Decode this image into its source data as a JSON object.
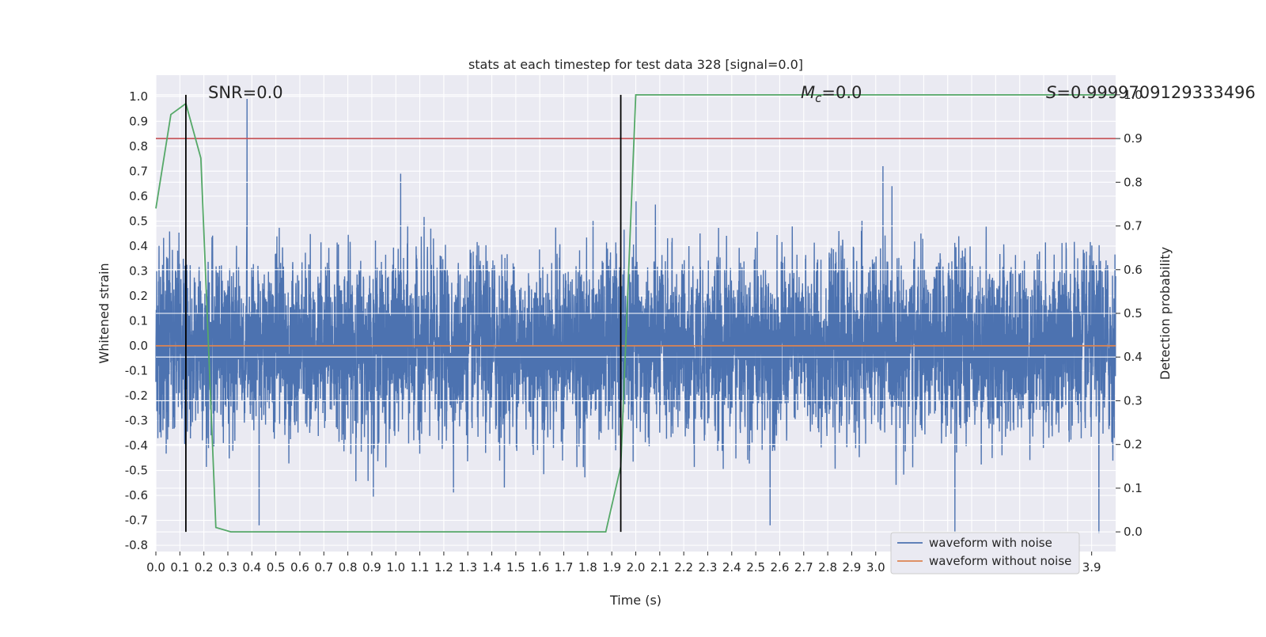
{
  "chart_data": {
    "type": "line",
    "title": "stats at each timestep for test data 328 [signal=0.0]",
    "xlabel": "Time (s)",
    "ylabel_left": "Whitened strain",
    "ylabel_right": "Detection probability",
    "xlim": [
      0.0,
      4.0
    ],
    "ylim_left": [
      -0.825,
      1.085
    ],
    "ylim_right": [
      -0.045,
      1.045
    ],
    "x_ticks": [
      "0.0",
      "0.1",
      "0.2",
      "0.3",
      "0.4",
      "0.5",
      "0.6",
      "0.7",
      "0.8",
      "0.9",
      "1.0",
      "1.1",
      "1.2",
      "1.3",
      "1.4",
      "1.5",
      "1.6",
      "1.7",
      "1.8",
      "1.9",
      "2.0",
      "2.1",
      "2.2",
      "2.3",
      "2.4",
      "2.5",
      "2.6",
      "2.7",
      "2.8",
      "2.9",
      "3.0",
      "3.1",
      "3.2",
      "3.3",
      "3.4",
      "3.5",
      "3.6",
      "3.7",
      "3.8",
      "3.9"
    ],
    "y_ticks_left": [
      "1.0",
      "0.9",
      "0.8",
      "0.7",
      "0.6",
      "0.5",
      "0.4",
      "0.3",
      "0.2",
      "0.1",
      "0.0",
      "-0.1",
      "-0.2",
      "-0.3",
      "-0.4",
      "-0.5",
      "-0.6",
      "-0.7",
      "-0.8"
    ],
    "y_ticks_right": [
      "1.0",
      "0.9",
      "0.8",
      "0.7",
      "0.6",
      "0.5",
      "0.4",
      "0.3",
      "0.2",
      "0.1",
      "0.0"
    ],
    "grid": true,
    "legend_position": "bottom-right",
    "series": [
      {
        "name": "waveform with noise",
        "axis": "left",
        "color": "#4c72b0",
        "kind": "noise",
        "n_samples": 8192,
        "approx_std": 0.21,
        "seed": 328,
        "peaks": [
          {
            "x": 0.38,
            "y": 0.99
          },
          {
            "x": 0.43,
            "y": -0.72
          },
          {
            "x": 1.02,
            "y": 0.69
          },
          {
            "x": 2.56,
            "y": -0.72
          },
          {
            "x": 3.03,
            "y": 0.72
          },
          {
            "x": 3.33,
            "y": -0.75
          },
          {
            "x": 3.93,
            "y": -0.75
          }
        ]
      },
      {
        "name": "waveform without noise",
        "axis": "left",
        "color": "#dd8452",
        "x": [
          0.0,
          4.0
        ],
        "y": [
          0.0,
          0.0
        ]
      },
      {
        "name": "",
        "axis": "right",
        "color": "#55a868",
        "x": [
          0.0,
          0.0625,
          0.125,
          0.1875,
          0.25,
          0.3125,
          1.875,
          1.9375,
          2.0,
          4.0
        ],
        "y": [
          0.74,
          0.955,
          0.98,
          0.855,
          0.01,
          0.0,
          0.0,
          0.15,
          1.0,
          1.0
        ]
      }
    ],
    "threshold": {
      "axis": "right",
      "value": 0.9,
      "color": "#c44e52"
    },
    "vertical_lines": [
      {
        "x": 0.125,
        "ymin": 0.0,
        "ymax": 1.0,
        "color": "#000000"
      },
      {
        "x": 1.9375,
        "ymin": 0.0,
        "ymax": 1.0,
        "color": "#000000"
      }
    ],
    "annotations": {
      "snr": "SNR=0.0",
      "mc_prefix": "M",
      "mc_subscript": "c",
      "mc_suffix": "=0.0",
      "s_prefix": "S",
      "s_suffix": "=0.9999709129333496"
    },
    "colors": {
      "axes_bg": "#eaeaf2",
      "grid": "#ffffff"
    }
  }
}
